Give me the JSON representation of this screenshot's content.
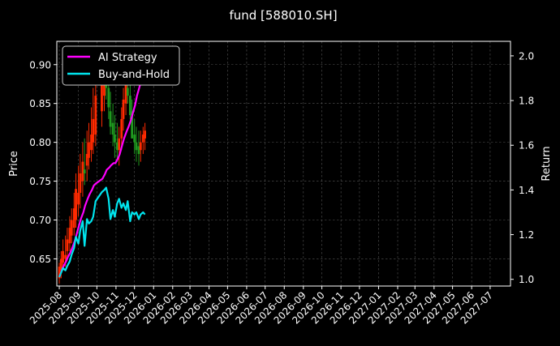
{
  "chart_data": {
    "type": "line",
    "title": "fund [588010.SH]",
    "ylabel_left": "Price",
    "ylabel_right": "Return",
    "legend_position": "top-left",
    "grid": true,
    "x_ticks": [
      "2025-08",
      "2025-09",
      "2025-10",
      "2025-11",
      "2025-12",
      "2026-01",
      "2026-02",
      "2026-03",
      "2026-04",
      "2026-05",
      "2026-06",
      "2026-07",
      "2026-08",
      "2026-09",
      "2026-10",
      "2026-11",
      "2026-12",
      "2027-01",
      "2027-02",
      "2027-03",
      "2027-04",
      "2027-05",
      "2027-06",
      "2027-07"
    ],
    "xlim": [
      "2025-07-28",
      "2027-08-03"
    ],
    "ylim_left": [
      0.615,
      0.93
    ],
    "yticks_left": [
      0.65,
      0.7,
      0.75,
      0.8,
      0.85,
      0.9
    ],
    "ylim_right": [
      0.97,
      2.065
    ],
    "yticks_right": [
      1.0,
      1.2,
      1.4,
      1.6,
      1.8,
      2.0
    ],
    "colors": {
      "ai_strategy": "#ff00ff",
      "buy_and_hold": "#00e5ee",
      "candle_up": "#ff2a00",
      "candle_down": "#1f9a1f",
      "background": "#000000",
      "axis": "#ffffff"
    },
    "series": [
      {
        "name": "AI Strategy",
        "axis": "right",
        "x": [
          "2025-08-01",
          "2025-08-05",
          "2025-08-08",
          "2025-08-12",
          "2025-08-15",
          "2025-08-19",
          "2025-08-22",
          "2025-08-26",
          "2025-08-29",
          "2025-09-02",
          "2025-09-05",
          "2025-09-09",
          "2025-09-12",
          "2025-09-16",
          "2025-09-19",
          "2025-09-23",
          "2025-09-26",
          "2025-09-30",
          "2025-10-10",
          "2025-10-14",
          "2025-10-17",
          "2025-10-21",
          "2025-10-24",
          "2025-10-28",
          "2025-10-31",
          "2025-11-04",
          "2025-11-07",
          "2025-11-11",
          "2025-11-14",
          "2025-11-18",
          "2025-11-21",
          "2025-11-25",
          "2025-11-28",
          "2025-12-02",
          "2025-12-05",
          "2025-12-09",
          "2025-12-12",
          "2025-12-16",
          "2025-12-19"
        ],
        "values": [
          1.01,
          1.04,
          1.06,
          1.08,
          1.1,
          1.12,
          1.14,
          1.17,
          1.2,
          1.24,
          1.27,
          1.3,
          1.33,
          1.36,
          1.38,
          1.4,
          1.42,
          1.43,
          1.45,
          1.47,
          1.49,
          1.5,
          1.51,
          1.52,
          1.52,
          1.54,
          1.56,
          1.6,
          1.63,
          1.66,
          1.68,
          1.71,
          1.74,
          1.78,
          1.82,
          1.86,
          1.89,
          1.92,
          1.96
        ]
      },
      {
        "name": "Buy-and-Hold",
        "axis": "right",
        "x": [
          "2025-08-01",
          "2025-08-04",
          "2025-08-07",
          "2025-08-11",
          "2025-08-14",
          "2025-08-18",
          "2025-08-21",
          "2025-08-25",
          "2025-08-28",
          "2025-09-01",
          "2025-09-04",
          "2025-09-08",
          "2025-09-11",
          "2025-09-15",
          "2025-09-18",
          "2025-09-22",
          "2025-09-25",
          "2025-09-29",
          "2025-10-09",
          "2025-10-13",
          "2025-10-16",
          "2025-10-20",
          "2025-10-23",
          "2025-10-27",
          "2025-10-30",
          "2025-11-03",
          "2025-11-06",
          "2025-11-10",
          "2025-11-13",
          "2025-11-17",
          "2025-11-20",
          "2025-11-24",
          "2025-11-27",
          "2025-12-01",
          "2025-12-04",
          "2025-12-08",
          "2025-12-11",
          "2025-12-15",
          "2025-12-18"
        ],
        "values": [
          1.01,
          1.03,
          1.05,
          1.04,
          1.06,
          1.08,
          1.11,
          1.14,
          1.19,
          1.16,
          1.22,
          1.26,
          1.15,
          1.27,
          1.25,
          1.26,
          1.28,
          1.35,
          1.39,
          1.4,
          1.41,
          1.36,
          1.27,
          1.31,
          1.28,
          1.34,
          1.36,
          1.32,
          1.34,
          1.31,
          1.35,
          1.26,
          1.3,
          1.29,
          1.3,
          1.27,
          1.29,
          1.3,
          1.29
        ]
      }
    ],
    "candles": {
      "axis": "left",
      "x": [
        "2025-08-01",
        "2025-08-04",
        "2025-08-07",
        "2025-08-11",
        "2025-08-14",
        "2025-08-18",
        "2025-08-21",
        "2025-08-25",
        "2025-08-28",
        "2025-09-01",
        "2025-09-04",
        "2025-09-08",
        "2025-09-11",
        "2025-09-15",
        "2025-09-18",
        "2025-09-22",
        "2025-09-25",
        "2025-09-29",
        "2025-10-09",
        "2025-10-13",
        "2025-10-16",
        "2025-10-20",
        "2025-10-23",
        "2025-10-27",
        "2025-10-30",
        "2025-11-03",
        "2025-11-06",
        "2025-11-10",
        "2025-11-13",
        "2025-11-17",
        "2025-11-20",
        "2025-11-24",
        "2025-11-27",
        "2025-12-01",
        "2025-12-04",
        "2025-12-08",
        "2025-12-11",
        "2025-12-15",
        "2025-12-18"
      ],
      "open": [
        0.625,
        0.635,
        0.645,
        0.65,
        0.66,
        0.67,
        0.68,
        0.69,
        0.7,
        0.72,
        0.735,
        0.75,
        0.765,
        0.77,
        0.78,
        0.79,
        0.8,
        0.81,
        0.84,
        0.86,
        0.88,
        0.87,
        0.84,
        0.825,
        0.81,
        0.8,
        0.79,
        0.805,
        0.83,
        0.85,
        0.87,
        0.86,
        0.84,
        0.81,
        0.8,
        0.795,
        0.79,
        0.8,
        0.805
      ],
      "high": [
        0.645,
        0.66,
        0.675,
        0.68,
        0.69,
        0.705,
        0.715,
        0.735,
        0.76,
        0.77,
        0.785,
        0.8,
        0.805,
        0.815,
        0.825,
        0.845,
        0.87,
        0.89,
        0.91,
        0.92,
        0.915,
        0.895,
        0.865,
        0.85,
        0.835,
        0.825,
        0.82,
        0.845,
        0.87,
        0.895,
        0.905,
        0.88,
        0.855,
        0.83,
        0.82,
        0.815,
        0.815,
        0.82,
        0.825
      ],
      "low": [
        0.618,
        0.625,
        0.635,
        0.64,
        0.65,
        0.66,
        0.67,
        0.68,
        0.69,
        0.705,
        0.715,
        0.73,
        0.745,
        0.75,
        0.765,
        0.775,
        0.785,
        0.795,
        0.82,
        0.84,
        0.855,
        0.83,
        0.81,
        0.795,
        0.78,
        0.775,
        0.77,
        0.79,
        0.815,
        0.835,
        0.85,
        0.83,
        0.805,
        0.785,
        0.775,
        0.77,
        0.775,
        0.785,
        0.79
      ],
      "close": [
        0.64,
        0.65,
        0.66,
        0.655,
        0.675,
        0.69,
        0.7,
        0.715,
        0.74,
        0.735,
        0.76,
        0.775,
        0.76,
        0.785,
        0.8,
        0.81,
        0.83,
        0.86,
        0.88,
        0.895,
        0.87,
        0.845,
        0.82,
        0.81,
        0.8,
        0.79,
        0.805,
        0.83,
        0.855,
        0.88,
        0.86,
        0.835,
        0.805,
        0.8,
        0.79,
        0.785,
        0.8,
        0.81,
        0.815
      ]
    }
  }
}
